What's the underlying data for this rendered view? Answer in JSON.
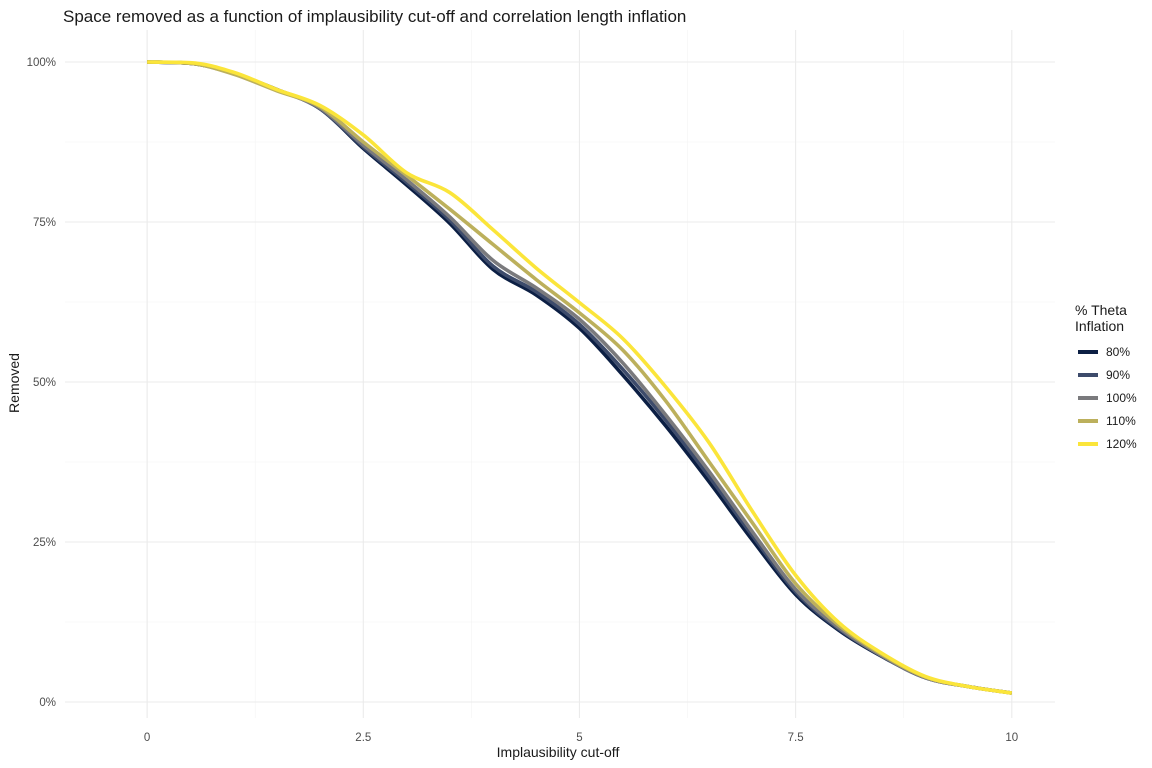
{
  "chart_data": {
    "type": "line",
    "title": "Space removed as a function of implausibility cut-off and correlation length inflation",
    "xlabel": "Implausibility cut-off",
    "ylabel": "Removed",
    "xlim": [
      -0.95,
      10.5
    ],
    "ylim": [
      -0.025,
      1.05
    ],
    "x_ticks": [
      0,
      2.5,
      5,
      7.5,
      10
    ],
    "x_tick_labels": [
      "0",
      "2.5",
      "5",
      "7.5",
      "10"
    ],
    "y_ticks": [
      0,
      0.25,
      0.5,
      0.75,
      1.0
    ],
    "y_tick_labels": [
      "0%",
      "25%",
      "50%",
      "75%",
      "100%"
    ],
    "grid": true,
    "legend": {
      "title_lines": [
        "% Theta",
        "Inflation"
      ],
      "position": "right"
    },
    "series": [
      {
        "name": "80%",
        "color": "#0c1f44",
        "x": [
          0,
          0.5,
          1.0,
          1.5,
          2.0,
          2.5,
          3.0,
          3.5,
          4.0,
          4.5,
          5.0,
          5.5,
          6.0,
          6.5,
          7.0,
          7.5,
          8.0,
          8.5,
          9.0,
          9.5,
          10.0
        ],
        "y": [
          1.0,
          0.998,
          0.982,
          0.957,
          0.927,
          0.865,
          0.808,
          0.748,
          0.676,
          0.636,
          0.584,
          0.511,
          0.431,
          0.344,
          0.253,
          0.168,
          0.112,
          0.071,
          0.038,
          0.024,
          0.014
        ]
      },
      {
        "name": "90%",
        "color": "#3d4b6b",
        "x": [
          0,
          0.5,
          1.0,
          1.5,
          2.0,
          2.5,
          3.0,
          3.5,
          4.0,
          4.5,
          5.0,
          5.5,
          6.0,
          6.5,
          7.0,
          7.5,
          8.0,
          8.5,
          9.0,
          9.5,
          10.0
        ],
        "y": [
          1.0,
          0.998,
          0.982,
          0.957,
          0.927,
          0.867,
          0.812,
          0.753,
          0.681,
          0.641,
          0.59,
          0.52,
          0.44,
          0.352,
          0.26,
          0.172,
          0.114,
          0.072,
          0.038,
          0.024,
          0.014
        ]
      },
      {
        "name": "100%",
        "color": "#7a7a7d",
        "x": [
          0,
          0.5,
          1.0,
          1.5,
          2.0,
          2.5,
          3.0,
          3.5,
          4.0,
          4.5,
          5.0,
          5.5,
          6.0,
          6.5,
          7.0,
          7.5,
          8.0,
          8.5,
          9.0,
          9.5,
          10.0
        ],
        "y": [
          1.0,
          0.998,
          0.982,
          0.956,
          0.928,
          0.87,
          0.816,
          0.758,
          0.69,
          0.647,
          0.598,
          0.53,
          0.448,
          0.36,
          0.266,
          0.176,
          0.116,
          0.072,
          0.038,
          0.024,
          0.014
        ]
      },
      {
        "name": "110%",
        "color": "#bcb05c",
        "x": [
          0,
          0.5,
          1.0,
          1.5,
          2.0,
          2.5,
          3.0,
          3.5,
          4.0,
          4.5,
          5.0,
          5.5,
          6.0,
          6.5,
          7.0,
          7.5,
          8.0,
          8.5,
          9.0,
          9.5,
          10.0
        ],
        "y": [
          1.0,
          0.998,
          0.981,
          0.955,
          0.93,
          0.875,
          0.823,
          0.77,
          0.715,
          0.66,
          0.608,
          0.55,
          0.47,
          0.375,
          0.28,
          0.185,
          0.12,
          0.074,
          0.039,
          0.024,
          0.014
        ]
      },
      {
        "name": "120%",
        "color": "#fbe53a",
        "x": [
          0,
          0.5,
          1.0,
          1.5,
          2.0,
          2.5,
          3.0,
          3.5,
          4.0,
          4.5,
          5.0,
          5.5,
          6.0,
          6.5,
          7.0,
          7.5,
          8.0,
          8.5,
          9.0,
          9.5,
          10.0
        ],
        "y": [
          1.0,
          0.999,
          0.984,
          0.957,
          0.932,
          0.886,
          0.827,
          0.796,
          0.738,
          0.678,
          0.624,
          0.568,
          0.492,
          0.405,
          0.298,
          0.198,
          0.124,
          0.076,
          0.04,
          0.024,
          0.014
        ]
      }
    ]
  }
}
